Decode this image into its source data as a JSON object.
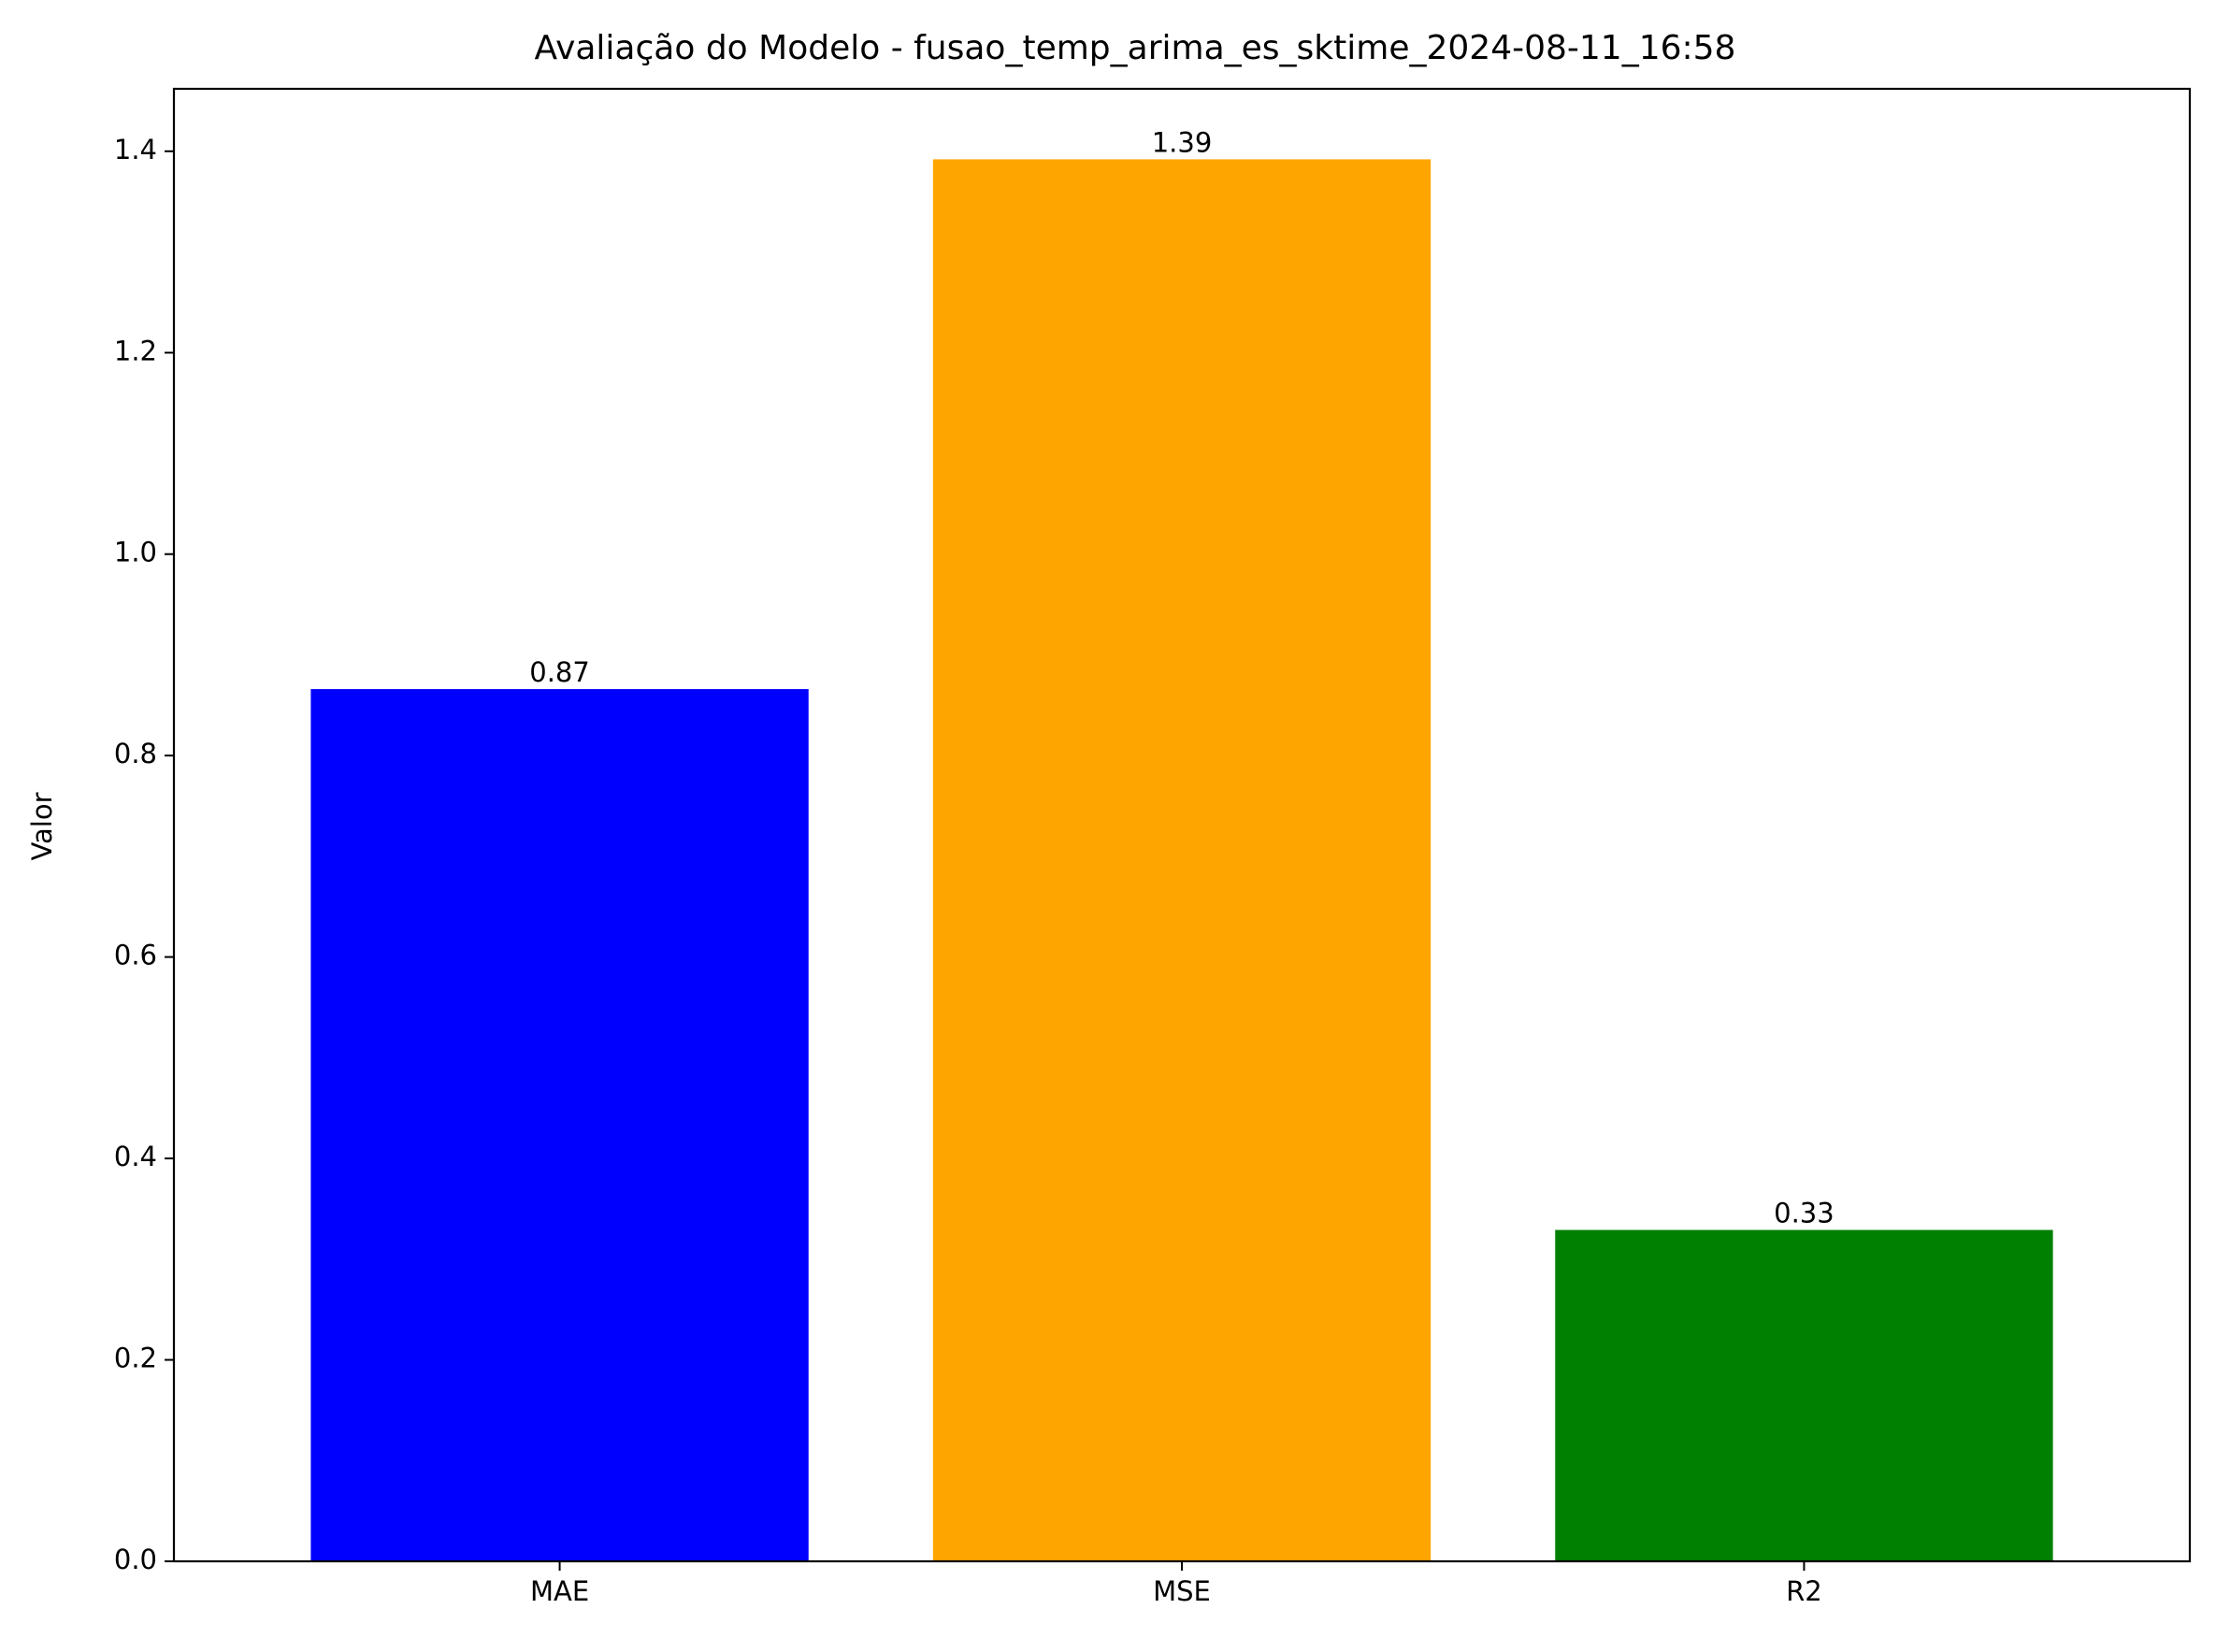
{
  "chart_data": {
    "type": "bar",
    "title": "Avaliação do Modelo - fusao_temp_arima_es_sktime_2024-08-11_16:58",
    "xlabel": "",
    "ylabel": "Valor",
    "categories": [
      "MAE",
      "MSE",
      "R2"
    ],
    "values": [
      0.866,
      1.392,
      0.329
    ],
    "value_labels": [
      "0.87",
      "1.39",
      "0.33"
    ],
    "colors": [
      "#0000ff",
      "#ffa500",
      "#008000"
    ],
    "ylim": [
      0,
      1.462
    ],
    "yticks": [
      0.0,
      0.2,
      0.4,
      0.6,
      0.8,
      1.0,
      1.2,
      1.4
    ],
    "ytick_labels": [
      "0.0",
      "0.2",
      "0.4",
      "0.6",
      "0.8",
      "1.0",
      "1.2",
      "1.4"
    ],
    "grid": false,
    "legend": "none"
  }
}
